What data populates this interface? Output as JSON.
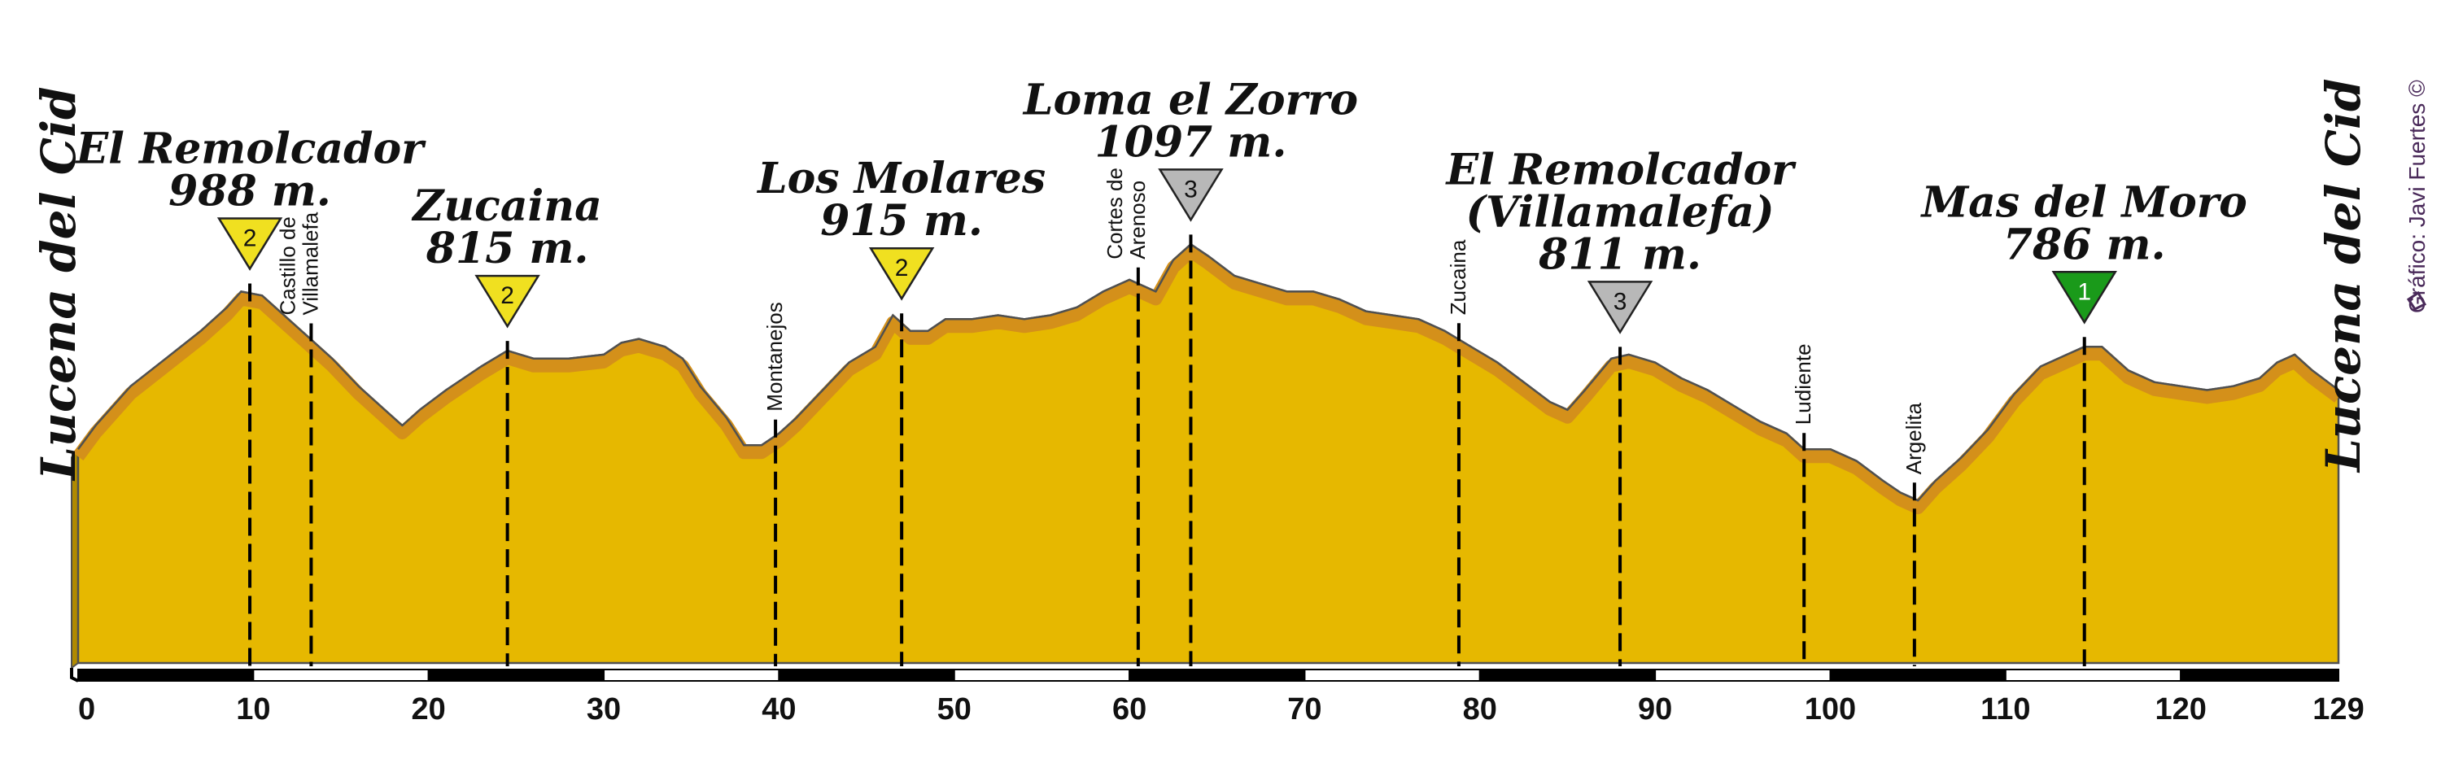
{
  "start_label": "Lucena del Cid",
  "end_label": "Lucena del Cid",
  "credit": "Gráfico: Javi Fuertes ©",
  "colors": {
    "fill": "#e6b800",
    "edge": "#d4901a",
    "outline": "#505050",
    "cat1": "#1a9a1a",
    "cat2": "#f0e020",
    "cat3": "#b8b8b8"
  },
  "chart_data": {
    "type": "area",
    "x_label_ticks": [
      "0",
      "10",
      "20",
      "30",
      "40",
      "50",
      "60",
      "70",
      "80",
      "90",
      "100",
      "110",
      "120",
      "129"
    ],
    "xlim": [
      0,
      129
    ],
    "ylim": [
      0,
      1200
    ],
    "profile": [
      [
        0,
        460
      ],
      [
        1,
        520
      ],
      [
        3,
        620
      ],
      [
        5,
        690
      ],
      [
        7,
        760
      ],
      [
        8.5,
        820
      ],
      [
        9.3,
        860
      ],
      [
        10.5,
        850
      ],
      [
        12,
        790
      ],
      [
        13,
        750
      ],
      [
        14.5,
        690
      ],
      [
        16,
        620
      ],
      [
        17.5,
        560
      ],
      [
        18.5,
        520
      ],
      [
        19.5,
        560
      ],
      [
        21,
        610
      ],
      [
        23,
        670
      ],
      [
        24.5,
        710
      ],
      [
        26,
        690
      ],
      [
        28,
        690
      ],
      [
        30,
        700
      ],
      [
        31,
        730
      ],
      [
        32,
        740
      ],
      [
        33.5,
        720
      ],
      [
        34.5,
        690
      ],
      [
        35.5,
        620
      ],
      [
        37,
        540
      ],
      [
        38,
        470
      ],
      [
        39,
        470
      ],
      [
        40,
        500
      ],
      [
        41,
        540
      ],
      [
        42.5,
        610
      ],
      [
        44,
        680
      ],
      [
        45.5,
        720
      ],
      [
        46.5,
        800
      ],
      [
        47.5,
        760
      ],
      [
        48.5,
        760
      ],
      [
        49.5,
        790
      ],
      [
        51,
        790
      ],
      [
        52.5,
        800
      ],
      [
        54,
        790
      ],
      [
        55.5,
        800
      ],
      [
        57,
        820
      ],
      [
        58.5,
        860
      ],
      [
        60,
        890
      ],
      [
        61.5,
        860
      ],
      [
        62.5,
        940
      ],
      [
        63.5,
        980
      ],
      [
        64.5,
        950
      ],
      [
        66,
        900
      ],
      [
        67.5,
        880
      ],
      [
        69,
        860
      ],
      [
        70.5,
        860
      ],
      [
        72,
        840
      ],
      [
        73.5,
        810
      ],
      [
        75,
        800
      ],
      [
        76.5,
        790
      ],
      [
        78,
        760
      ],
      [
        79.5,
        720
      ],
      [
        81,
        680
      ],
      [
        82.5,
        630
      ],
      [
        84,
        580
      ],
      [
        85,
        560
      ],
      [
        86,
        610
      ],
      [
        87.5,
        690
      ],
      [
        88.5,
        700
      ],
      [
        90,
        680
      ],
      [
        91.5,
        640
      ],
      [
        93,
        610
      ],
      [
        94.5,
        570
      ],
      [
        96,
        530
      ],
      [
        97.5,
        500
      ],
      [
        98.5,
        460
      ],
      [
        100,
        460
      ],
      [
        101.5,
        430
      ],
      [
        103,
        380
      ],
      [
        104,
        350
      ],
      [
        105,
        330
      ],
      [
        106,
        380
      ],
      [
        107.5,
        440
      ],
      [
        109,
        510
      ],
      [
        110.5,
        600
      ],
      [
        112,
        670
      ],
      [
        113.5,
        700
      ],
      [
        114.5,
        720
      ],
      [
        115.5,
        720
      ],
      [
        117,
        660
      ],
      [
        118.5,
        630
      ],
      [
        120,
        620
      ],
      [
        121.5,
        610
      ],
      [
        123,
        620
      ],
      [
        124.5,
        640
      ],
      [
        125.5,
        680
      ],
      [
        126.5,
        700
      ],
      [
        127.5,
        660
      ],
      [
        129,
        610
      ]
    ],
    "peaks": [
      {
        "lines": [
          "El Remolcador",
          "988 m."
        ],
        "km": 9.8,
        "category": "2"
      },
      {
        "lines": [
          "Zucaina",
          "815 m."
        ],
        "km": 24.5,
        "category": "2"
      },
      {
        "lines": [
          "Los Molares",
          "915 m."
        ],
        "km": 47.0,
        "category": "2"
      },
      {
        "lines": [
          "Loma el Zorro",
          "1097 m."
        ],
        "km": 63.5,
        "category": "3"
      },
      {
        "lines": [
          "El Remolcador",
          "(Villamalefa)",
          "811 m."
        ],
        "km": 88.0,
        "category": "3"
      },
      {
        "lines": [
          "Mas del Moro",
          "786 m."
        ],
        "km": 114.5,
        "category": "1"
      }
    ],
    "towns": [
      {
        "lines": [
          "Castillo de",
          "Villamalefa"
        ],
        "km": 13.3
      },
      {
        "lines": [
          "Montanejos"
        ],
        "km": 39.8
      },
      {
        "lines": [
          "Cortes de",
          "Arenoso"
        ],
        "km": 60.5
      },
      {
        "lines": [
          "Zucaina"
        ],
        "km": 78.8
      },
      {
        "lines": [
          "Ludiente"
        ],
        "km": 98.5
      },
      {
        "lines": [
          "Argelita"
        ],
        "km": 104.8
      }
    ]
  }
}
